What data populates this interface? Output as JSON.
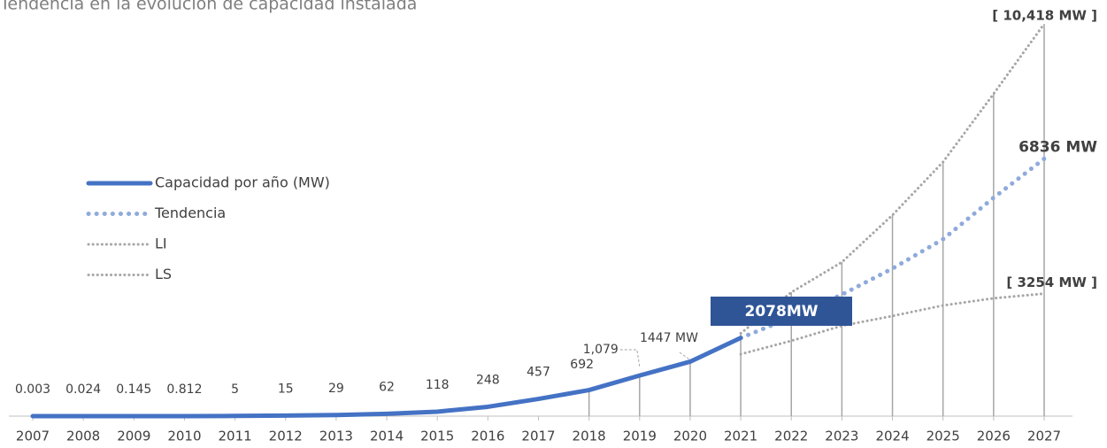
{
  "chart_data": {
    "type": "line",
    "title": "Tendencia en la evolución de capacidad instalada",
    "categories": [
      "2007",
      "2008",
      "2009",
      "2010",
      "2011",
      "2012",
      "2013",
      "2014",
      "2015",
      "2016",
      "2017",
      "2018",
      "2019",
      "2020",
      "2021",
      "2022",
      "2023",
      "2024",
      "2025",
      "2026",
      "2027"
    ],
    "ylim": [
      0,
      10418
    ],
    "legend": "left",
    "series": [
      {
        "name": "Capacidad por año (MW)",
        "color": "#4472c4",
        "values": [
          0.003,
          0.024,
          0.145,
          0.812,
          5,
          15,
          29,
          62,
          118,
          248,
          457,
          692,
          1079,
          1447,
          2078,
          null,
          null,
          null,
          null,
          null,
          null
        ],
        "value_labels": [
          "0.003",
          "0.024",
          "0.145",
          "0.812",
          "5",
          "15",
          "29",
          "62",
          "118",
          "248",
          "457",
          "692",
          "1,079",
          "1447 MW",
          "2078MW",
          null,
          null,
          null,
          null,
          null,
          null
        ]
      },
      {
        "name": "Tendencia",
        "color": "#8faadc",
        "values": [
          null,
          null,
          null,
          null,
          null,
          null,
          null,
          null,
          null,
          null,
          null,
          null,
          null,
          null,
          2078,
          2620,
          3230,
          3920,
          4700,
          5800,
          6836
        ],
        "value_labels": [
          null,
          null,
          null,
          null,
          null,
          null,
          null,
          null,
          null,
          null,
          null,
          null,
          null,
          null,
          null,
          null,
          null,
          null,
          null,
          null,
          "6836 MW"
        ]
      },
      {
        "name": "LI",
        "color": "#a6a6a6",
        "values": [
          null,
          null,
          null,
          null,
          null,
          null,
          null,
          null,
          null,
          null,
          null,
          null,
          null,
          null,
          1646,
          2000,
          2400,
          2660,
          2940,
          3130,
          3254
        ],
        "value_labels": [
          null,
          null,
          null,
          null,
          null,
          null,
          null,
          null,
          null,
          null,
          null,
          null,
          null,
          null,
          null,
          null,
          null,
          null,
          null,
          null,
          "[ 3254 MW ]"
        ]
      },
      {
        "name": "LS",
        "color": "#a6a6a6",
        "values": [
          null,
          null,
          null,
          null,
          null,
          null,
          null,
          null,
          null,
          null,
          null,
          null,
          null,
          null,
          2200,
          3290,
          4090,
          5340,
          6750,
          8560,
          10418
        ],
        "value_labels": [
          null,
          null,
          null,
          null,
          null,
          null,
          null,
          null,
          null,
          null,
          null,
          null,
          null,
          null,
          null,
          null,
          null,
          null,
          null,
          null,
          "[ 10,418 MW ]"
        ]
      }
    ]
  }
}
